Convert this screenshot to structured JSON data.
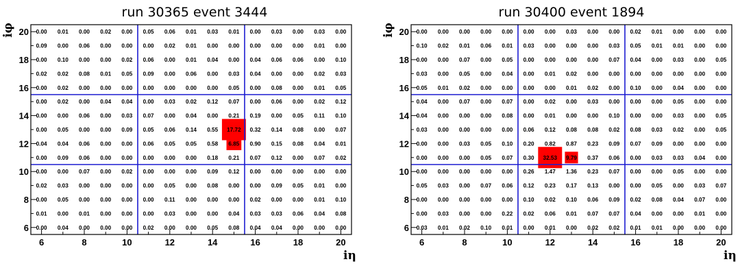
{
  "chart_data": [
    {
      "type": "heatmap",
      "title": "run 30365  event 3444",
      "xlabel": "iη",
      "ylabel": "iφ",
      "xlim": [
        6,
        20
      ],
      "ylim": [
        6,
        20
      ],
      "x_ticks": [
        "6",
        "8",
        "10",
        "12",
        "14",
        "16",
        "18",
        "20"
      ],
      "y_ticks": [
        "6",
        "8",
        "10",
        "12",
        "14",
        "16",
        "18",
        "20"
      ],
      "x": [
        6,
        7,
        8,
        9,
        10,
        11,
        12,
        13,
        14,
        15,
        16,
        17,
        18,
        19,
        20
      ],
      "rows": [
        {
          "y": 20,
          "values": [
            "0.00",
            "0.01",
            "0.00",
            "0.02",
            "0.00",
            "0.05",
            "0.06",
            "0.01",
            "0.03",
            "0.01",
            "0.00",
            "0.03",
            "0.00",
            "0.03",
            "0.00"
          ]
        },
        {
          "y": 19,
          "values": [
            "0.09",
            "0.00",
            "0.06",
            "0.00",
            "0.00",
            "0.00",
            "0.02",
            "0.01",
            "0.00",
            "0.00",
            "0.00",
            "0.00",
            "0.00",
            "0.01",
            "0.00"
          ]
        },
        {
          "y": 18,
          "values": [
            "0.00",
            "0.10",
            "0.00",
            "0.00",
            "0.02",
            "0.06",
            "0.00",
            "0.01",
            "0.04",
            "0.00",
            "0.04",
            "0.06",
            "0.06",
            "0.00",
            "0.10"
          ]
        },
        {
          "y": 17,
          "values": [
            "0.02",
            "0.02",
            "0.08",
            "0.01",
            "0.05",
            "0.09",
            "0.00",
            "0.06",
            "0.00",
            "0.03",
            "0.04",
            "0.00",
            "0.00",
            "0.02",
            "0.03"
          ]
        },
        {
          "y": 16,
          "values": [
            "0.00",
            "0.02",
            "0.00",
            "0.00",
            "0.00",
            "0.00",
            "0.00",
            "0.00",
            "0.00",
            "0.05",
            "0.00",
            "0.08",
            "0.00",
            "0.01",
            "0.05"
          ]
        },
        {
          "y": 15,
          "values": [
            "0.00",
            "0.02",
            "0.00",
            "0.04",
            "0.04",
            "0.00",
            "0.03",
            "0.02",
            "0.12",
            "0.07",
            "0.00",
            "0.06",
            "0.00",
            "0.02",
            "0.12"
          ]
        },
        {
          "y": 14,
          "values": [
            "0.00",
            "0.00",
            "0.06",
            "0.00",
            "0.03",
            "0.07",
            "0.00",
            "0.04",
            "0.00",
            "0.21",
            "0.19",
            "0.00",
            "0.05",
            "0.11",
            "0.10"
          ]
        },
        {
          "y": 13,
          "values": [
            "0.00",
            "0.05",
            "0.00",
            "0.00",
            "0.09",
            "0.05",
            "0.06",
            "0.14",
            "0.55",
            "17.72",
            "0.32",
            "0.14",
            "0.08",
            "0.00",
            "0.07"
          ]
        },
        {
          "y": 12,
          "values": [
            "0.04",
            "0.04",
            "0.06",
            "0.00",
            "0.00",
            "0.06",
            "0.05",
            "0.05",
            "0.58",
            "6.85",
            "0.90",
            "0.15",
            "0.08",
            "0.04",
            "0.01"
          ]
        },
        {
          "y": 11,
          "values": [
            "0.00",
            "0.09",
            "0.06",
            "0.00",
            "0.00",
            "0.00",
            "0.00",
            "0.00",
            "0.18",
            "0.21",
            "0.07",
            "0.12",
            "0.00",
            "0.07",
            "0.02"
          ]
        },
        {
          "y": 10,
          "values": [
            "0.00",
            "0.00",
            "0.07",
            "0.00",
            "0.02",
            "0.00",
            "0.00",
            "0.00",
            "0.09",
            "0.12",
            "0.00",
            "0.00",
            "0.00",
            "0.00",
            "0.00"
          ]
        },
        {
          "y": 9,
          "values": [
            "0.02",
            "0.03",
            "0.00",
            "0.00",
            "0.00",
            "0.00",
            "0.05",
            "0.00",
            "0.08",
            "0.00",
            "0.00",
            "0.09",
            "0.05",
            "0.01",
            "0.00"
          ]
        },
        {
          "y": 8,
          "values": [
            "0.00",
            "0.05",
            "0.00",
            "0.00",
            "0.00",
            "0.00",
            "0.11",
            "0.00",
            "0.00",
            "0.00",
            "0.02",
            "0.00",
            "0.00",
            "0.01",
            "0.10"
          ]
        },
        {
          "y": 7,
          "values": [
            "0.01",
            "0.00",
            "0.01",
            "0.00",
            "0.00",
            "0.00",
            "0.03",
            "0.00",
            "0.00",
            "0.04",
            "0.03",
            "0.03",
            "0.06",
            "0.04",
            "0.08"
          ]
        },
        {
          "y": 6,
          "values": [
            "0.00",
            "0.04",
            "0.00",
            "0.00",
            "0.00",
            "0.02",
            "0.00",
            "0.00",
            "0.05",
            "0.08",
            "0.04",
            "0.04",
            "0.00",
            "0.00",
            "0.00"
          ]
        }
      ],
      "highlights": [
        {
          "x": 15,
          "y": 13,
          "value": 17.72
        },
        {
          "x": 15,
          "y": 12,
          "value": 6.85
        }
      ],
      "colors": {
        "highlight": "#ff0000",
        "grid": "#1c1cd0",
        "frame": "#000000"
      }
    },
    {
      "type": "heatmap",
      "title": "run 30400 event 1894",
      "xlabel": "iη",
      "ylabel": "iφ",
      "xlim": [
        6,
        20
      ],
      "ylim": [
        6,
        20
      ],
      "x_ticks": [
        "6",
        "8",
        "10",
        "12",
        "14",
        "16",
        "18",
        "20"
      ],
      "y_ticks": [
        "6",
        "8",
        "10",
        "12",
        "14",
        "16",
        "18",
        "20"
      ],
      "x": [
        6,
        7,
        8,
        9,
        10,
        11,
        12,
        13,
        14,
        15,
        16,
        17,
        18,
        19,
        20
      ],
      "rows": [
        {
          "y": 20,
          "values": [
            "0.00",
            "0.00",
            "0.00",
            "0.00",
            "0.00",
            "0.00",
            "0.00",
            "0.03",
            "0.00",
            "0.00",
            "0.02",
            "0.01",
            "0.00",
            "0.00",
            "0.00"
          ]
        },
        {
          "y": 19,
          "values": [
            "0.10",
            "0.02",
            "0.01",
            "0.06",
            "0.01",
            "0.03",
            "0.00",
            "0.00",
            "0.00",
            "0.03",
            "0.05",
            "0.01",
            "0.01",
            "0.00",
            "0.00"
          ]
        },
        {
          "y": 18,
          "values": [
            "0.00",
            "0.00",
            "0.07",
            "0.00",
            "0.05",
            "0.00",
            "0.00",
            "0.00",
            "0.00",
            "0.07",
            "0.04",
            "0.00",
            "0.03",
            "0.00",
            "0.05"
          ]
        },
        {
          "y": 17,
          "values": [
            "0.03",
            "0.00",
            "0.05",
            "0.00",
            "0.04",
            "0.00",
            "0.01",
            "0.02",
            "0.00",
            "0.00",
            "0.00",
            "0.00",
            "0.00",
            "0.00",
            "0.00"
          ]
        },
        {
          "y": 16,
          "values": [
            "0.05",
            "0.01",
            "0.02",
            "0.00",
            "0.00",
            "0.00",
            "0.00",
            "0.01",
            "0.02",
            "0.00",
            "0.10",
            "0.00",
            "0.04",
            "0.00",
            "0.00"
          ]
        },
        {
          "y": 15,
          "values": [
            "0.04",
            "0.00",
            "0.07",
            "0.00",
            "0.07",
            "0.00",
            "0.02",
            "0.00",
            "0.03",
            "0.00",
            "0.00",
            "0.00",
            "0.05",
            "0.00",
            "0.00"
          ]
        },
        {
          "y": 14,
          "values": [
            "0.04",
            "0.00",
            "0.00",
            "0.00",
            "0.08",
            "0.00",
            "0.01",
            "0.00",
            "0.00",
            "0.10",
            "0.00",
            "0.00",
            "0.03",
            "0.00",
            "0.05"
          ]
        },
        {
          "y": 13,
          "values": [
            "0.03",
            "0.00",
            "0.00",
            "0.00",
            "0.00",
            "0.06",
            "0.12",
            "0.08",
            "0.08",
            "0.02",
            "0.08",
            "0.03",
            "0.02",
            "0.00",
            "0.05"
          ]
        },
        {
          "y": 12,
          "values": [
            "0.00",
            "0.00",
            "0.03",
            "0.05",
            "0.10",
            "0.20",
            "0.82",
            "0.87",
            "0.23",
            "0.09",
            "0.07",
            "0.09",
            "0.00",
            "0.00",
            "0.00"
          ]
        },
        {
          "y": 11,
          "values": [
            "0.00",
            "0.00",
            "0.00",
            "0.05",
            "0.07",
            "0.30",
            "32.53",
            "9.79",
            "0.37",
            "0.06",
            "0.00",
            "0.03",
            "0.03",
            "0.04",
            "0.00"
          ]
        },
        {
          "y": 10,
          "values": [
            "0.00",
            "0.00",
            "0.00",
            "0.00",
            "0.00",
            "0.26",
            "1.47",
            "1.36",
            "0.23",
            "0.07",
            "0.00",
            "0.00",
            "0.05",
            "0.00",
            "0.00"
          ]
        },
        {
          "y": 9,
          "values": [
            "0.05",
            "0.03",
            "0.00",
            "0.07",
            "0.06",
            "0.12",
            "0.23",
            "0.17",
            "0.13",
            "0.00",
            "0.00",
            "0.05",
            "0.00",
            "0.03",
            "0.07"
          ]
        },
        {
          "y": 8,
          "values": [
            "0.00",
            "0.00",
            "0.00",
            "0.00",
            "0.00",
            "0.10",
            "0.02",
            "0.10",
            "0.06",
            "0.09",
            "0.02",
            "0.08",
            "0.04",
            "0.07",
            "0.00"
          ]
        },
        {
          "y": 7,
          "values": [
            "0.00",
            "0.03",
            "0.00",
            "0.00",
            "0.22",
            "0.02",
            "0.06",
            "0.01",
            "0.07",
            "0.07",
            "0.04",
            "0.00",
            "0.00",
            "0.01",
            "0.00"
          ]
        },
        {
          "y": 6,
          "values": [
            "0.03",
            "0.01",
            "0.02",
            "0.10",
            "0.01",
            "0.00",
            "0.01",
            "0.00",
            "0.02",
            "0.02",
            "0.01",
            "0.01",
            "0.00",
            "0.00",
            "0.00"
          ]
        }
      ],
      "highlights": [
        {
          "x": 12,
          "y": 11,
          "value": 32.53
        },
        {
          "x": 13,
          "y": 11,
          "value": 9.79
        }
      ],
      "colors": {
        "highlight": "#ff0000",
        "grid": "#1c1cd0",
        "frame": "#000000"
      }
    }
  ]
}
